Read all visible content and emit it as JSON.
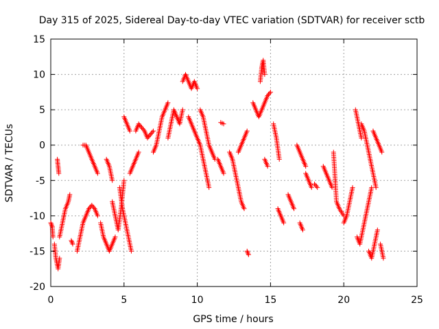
{
  "chart_data": {
    "type": "scatter",
    "title": "Day 315 of 2025, Sidereal Day-to-day VTEC variation (SDTVAR) for receiver sctb",
    "xlabel": "GPS time / hours",
    "ylabel": "SDTVAR / TECUs",
    "xlim": [
      0,
      25
    ],
    "ylim": [
      -20,
      15
    ],
    "xticks": [
      0,
      5,
      10,
      15,
      20,
      25
    ],
    "yticks": [
      -20,
      -15,
      -10,
      -5,
      0,
      5,
      10,
      15
    ],
    "xtick_labels": [
      "0",
      "5",
      "10",
      "15",
      "20",
      "25"
    ],
    "ytick_labels": [
      "-20",
      "-15",
      "-10",
      "-5",
      "0",
      "5",
      "10",
      "15"
    ],
    "grid": true,
    "marker": "plus",
    "color": "#ff0000",
    "tracks": [
      {
        "x": [
          0.0,
          0.1,
          0.15
        ],
        "y": [
          -11,
          -11.5,
          -13
        ]
      },
      {
        "x": [
          0.25,
          0.35,
          0.5,
          0.6
        ],
        "y": [
          -14,
          -16,
          -17.5,
          -16
        ]
      },
      {
        "x": [
          0.45,
          0.5,
          0.55
        ],
        "y": [
          -2,
          -3,
          -4
        ]
      },
      {
        "x": [
          0.6,
          0.8,
          1.0,
          1.2,
          1.3
        ],
        "y": [
          -13,
          -11,
          -9,
          -8,
          -7
        ]
      },
      {
        "x": [
          1.4,
          1.5
        ],
        "y": [
          -13.5,
          -14
        ]
      },
      {
        "x": [
          1.8,
          2.0,
          2.2,
          2.4,
          2.6,
          2.8,
          3.0,
          3.2
        ],
        "y": [
          -15,
          -13,
          -11,
          -10,
          -9,
          -8.5,
          -9,
          -10
        ]
      },
      {
        "x": [
          2.2,
          2.4,
          2.6,
          2.8,
          3.0,
          3.2
        ],
        "y": [
          0,
          0,
          -1,
          -2,
          -3,
          -4
        ]
      },
      {
        "x": [
          3.4,
          3.6,
          3.8,
          4.0,
          4.2,
          4.4
        ],
        "y": [
          -11,
          -13,
          -14,
          -15,
          -14,
          -13
        ]
      },
      {
        "x": [
          3.8,
          4.0,
          4.2
        ],
        "y": [
          -2,
          -3,
          -5
        ]
      },
      {
        "x": [
          4.2,
          4.4,
          4.6,
          4.8,
          5.0
        ],
        "y": [
          -8,
          -10,
          -12,
          -9,
          -5
        ]
      },
      {
        "x": [
          4.7,
          4.9,
          5.1,
          5.3,
          5.5
        ],
        "y": [
          -6,
          -9,
          -11,
          -13,
          -15
        ]
      },
      {
        "x": [
          5.0,
          5.2,
          5.4
        ],
        "y": [
          4,
          3,
          2
        ]
      },
      {
        "x": [
          5.4,
          5.6,
          5.8,
          6.0
        ],
        "y": [
          -4,
          -3,
          -2,
          -1
        ]
      },
      {
        "x": [
          5.8,
          6.0,
          6.2,
          6.4,
          6.6,
          6.8,
          7.0
        ],
        "y": [
          2,
          3,
          2.5,
          2,
          1,
          1.5,
          2
        ]
      },
      {
        "x": [
          7.0,
          7.2,
          7.4,
          7.6,
          7.8,
          8.0
        ],
        "y": [
          -1,
          0,
          2,
          4,
          5,
          6
        ]
      },
      {
        "x": [
          8.0,
          8.2,
          8.4,
          8.6,
          8.8,
          9.0
        ],
        "y": [
          1,
          3,
          5,
          4,
          3,
          5
        ]
      },
      {
        "x": [
          9.0,
          9.2,
          9.4,
          9.6,
          9.8,
          10.0
        ],
        "y": [
          9,
          10,
          9,
          8,
          9,
          8
        ]
      },
      {
        "x": [
          9.4,
          9.6,
          9.8,
          10.0,
          10.2,
          10.4,
          10.6,
          10.8
        ],
        "y": [
          4,
          3,
          2,
          1,
          0,
          -2,
          -4,
          -6
        ]
      },
      {
        "x": [
          10.2,
          10.4,
          10.6,
          10.8,
          11.0,
          11.2
        ],
        "y": [
          5,
          4,
          2,
          0,
          -1,
          -2
        ]
      },
      {
        "x": [
          11.4,
          11.6,
          11.8
        ],
        "y": [
          -2,
          -3,
          -4
        ]
      },
      {
        "x": [
          11.6,
          11.8
        ],
        "y": [
          3.2,
          3
        ]
      },
      {
        "x": [
          12.2,
          12.4,
          12.6,
          12.8,
          13.0,
          13.2
        ],
        "y": [
          -1,
          -2,
          -4,
          -6,
          -8,
          -9
        ]
      },
      {
        "x": [
          12.8,
          13.0,
          13.2,
          13.4
        ],
        "y": [
          -1,
          0,
          1,
          2
        ]
      },
      {
        "x": [
          13.4,
          13.5
        ],
        "y": [
          -15,
          -15.5
        ]
      },
      {
        "x": [
          13.8,
          14.0,
          14.2,
          14.4,
          14.6,
          14.8,
          15.0
        ],
        "y": [
          6,
          5,
          4,
          5,
          6,
          7,
          7.5
        ]
      },
      {
        "x": [
          14.3,
          14.4,
          14.5,
          14.6
        ],
        "y": [
          9,
          11,
          12,
          10
        ]
      },
      {
        "x": [
          14.6,
          14.8
        ],
        "y": [
          -2,
          -3
        ]
      },
      {
        "x": [
          15.2,
          15.4,
          15.6
        ],
        "y": [
          3,
          1,
          -2
        ]
      },
      {
        "x": [
          15.5,
          15.7,
          15.9
        ],
        "y": [
          -9,
          -10,
          -11
        ]
      },
      {
        "x": [
          16.2,
          16.4,
          16.6
        ],
        "y": [
          -7,
          -8,
          -9
        ]
      },
      {
        "x": [
          16.8,
          17.0,
          17.2,
          17.4
        ],
        "y": [
          0,
          -1,
          -2,
          -3
        ]
      },
      {
        "x": [
          17.0,
          17.2
        ],
        "y": [
          -11,
          -12
        ]
      },
      {
        "x": [
          17.4,
          17.6,
          17.8
        ],
        "y": [
          -4,
          -5,
          -6
        ]
      },
      {
        "x": [
          18.0,
          18.2
        ],
        "y": [
          -5.5,
          -6
        ]
      },
      {
        "x": [
          18.6,
          18.8,
          19.0,
          19.2
        ],
        "y": [
          -3,
          -4,
          -5,
          -6
        ]
      },
      {
        "x": [
          19.3,
          19.5,
          19.7,
          20.0
        ],
        "y": [
          -1,
          -8,
          -9,
          -10
        ]
      },
      {
        "x": [
          20.0,
          20.2,
          20.4,
          20.6
        ],
        "y": [
          -11,
          -10,
          -8,
          -6
        ]
      },
      {
        "x": [
          20.8,
          21.0,
          21.2
        ],
        "y": [
          5,
          3,
          1
        ]
      },
      {
        "x": [
          20.9,
          21.1,
          21.3,
          21.5,
          21.7,
          21.9
        ],
        "y": [
          -13,
          -14,
          -12,
          -10,
          -8,
          -6
        ]
      },
      {
        "x": [
          21.2,
          21.4,
          21.6,
          21.8,
          22.0,
          22.2
        ],
        "y": [
          3,
          2,
          0,
          -2,
          -4,
          -6
        ]
      },
      {
        "x": [
          21.7,
          21.9,
          22.1,
          22.3
        ],
        "y": [
          -15,
          -16,
          -14,
          -12
        ]
      },
      {
        "x": [
          22.0,
          22.2,
          22.4,
          22.6
        ],
        "y": [
          2,
          1,
          0,
          -1
        ]
      },
      {
        "x": [
          22.5,
          22.7
        ],
        "y": [
          -14,
          -16
        ]
      }
    ]
  }
}
